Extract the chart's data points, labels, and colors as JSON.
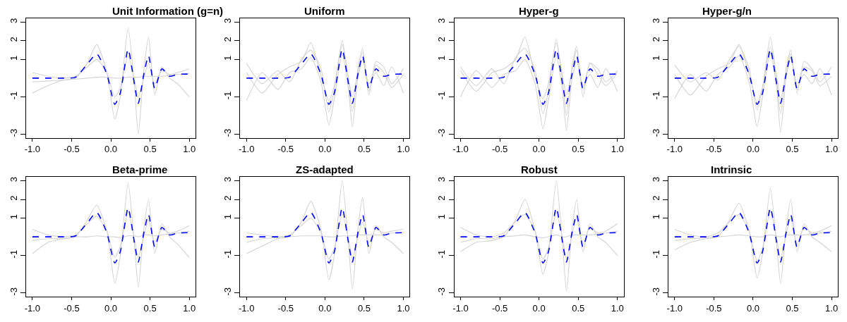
{
  "chart_data": [
    {
      "type": "line",
      "title": "Unit Information (g=n)",
      "x": [
        -1,
        -0.8,
        -0.6,
        -0.45,
        -0.3,
        -0.18,
        -0.05,
        0.05,
        0.12,
        0.22,
        0.3,
        0.35,
        0.42,
        0.48,
        0.56,
        0.65,
        0.75,
        0.85,
        1.0
      ],
      "xlim": [
        -1.08,
        1.08
      ],
      "ylim": [
        -3.2,
        3.2
      ],
      "xticks": [
        {
          "value": -1,
          "label": "-1.0"
        },
        {
          "value": -0.5,
          "label": "-0.5"
        },
        {
          "value": 0,
          "label": "0.0"
        },
        {
          "value": 0.5,
          "label": "0.5"
        },
        {
          "value": 1,
          "label": "1.0"
        }
      ],
      "yticks": [
        -3,
        -1,
        1,
        2,
        3
      ],
      "series": [
        {
          "color": "#d3d3d3",
          "line_style": "solid",
          "values": [
            -0.2,
            -0.15,
            -0.1,
            -0.05,
            0,
            0.05,
            0.05,
            0,
            0,
            0.05,
            0.05,
            0.05,
            0.1,
            0.1,
            0.1,
            0.1,
            0.15,
            0.2,
            0.25
          ]
        },
        {
          "color": "#d3d3d3",
          "line_style": "solid",
          "values": [
            0.3,
            0.1,
            0,
            0.1,
            0.6,
            1.0,
            0.3,
            -1.0,
            -0.5,
            1.2,
            -0.1,
            -1.0,
            0,
            0.8,
            -0.3,
            0.4,
            0.2,
            0.3,
            0.5
          ]
        },
        {
          "color": "#d3d3d3",
          "line_style": "solid",
          "values": [
            -0.8,
            -0.4,
            -0.1,
            0,
            0.8,
            1.8,
            0.3,
            -2.2,
            -1.0,
            2.7,
            -0.4,
            -3.0,
            0.4,
            2.2,
            -0.9,
            0.6,
            0,
            -0.3,
            -1.0
          ]
        },
        {
          "color": "#0000ff",
          "line_style": "dashed",
          "values": [
            0,
            0,
            0,
            0.05,
            0.75,
            1.3,
            0.2,
            -1.4,
            -0.8,
            1.55,
            -0.3,
            -1.35,
            0.2,
            1.2,
            -0.55,
            0.5,
            0.1,
            0.2,
            0.22
          ]
        }
      ]
    },
    {
      "type": "line",
      "title": "Uniform",
      "x": [
        -1,
        -0.8,
        -0.6,
        -0.45,
        -0.3,
        -0.18,
        -0.05,
        0.05,
        0.12,
        0.22,
        0.3,
        0.35,
        0.42,
        0.48,
        0.56,
        0.65,
        0.75,
        0.85,
        1.0
      ],
      "xlim": [
        -1.08,
        1.08
      ],
      "ylim": [
        -3.2,
        3.2
      ],
      "xticks": [
        {
          "value": -1,
          "label": "-1.0"
        },
        {
          "value": -0.5,
          "label": "-0.5"
        },
        {
          "value": 0,
          "label": "0.0"
        },
        {
          "value": 0.5,
          "label": "0.5"
        },
        {
          "value": 1,
          "label": "1.0"
        }
      ],
      "yticks": [
        -3,
        -1,
        1,
        2,
        3
      ],
      "series": [
        {
          "color": "#d3d3d3",
          "line_style": "solid",
          "values": [
            0.8,
            -0.3,
            0.4,
            -0.2,
            1.0,
            1.5,
            0.5,
            -1.8,
            -0.6,
            2.0,
            -0.1,
            -1.8,
            0.5,
            1.6,
            -0.9,
            0.9,
            0.6,
            -0.3,
            0.5
          ]
        },
        {
          "color": "#d3d3d3",
          "line_style": "solid",
          "values": [
            -1.2,
            0.3,
            -0.6,
            0.3,
            0.5,
            1.1,
            -0.2,
            -2.5,
            -1.1,
            1.3,
            -0.6,
            -2.6,
            0,
            1.0,
            -0.3,
            0.3,
            -0.4,
            0.6,
            -0.8
          ]
        },
        {
          "color": "#d3d3d3",
          "line_style": "solid",
          "values": [
            0.3,
            -0.8,
            0.2,
            0.6,
            0.9,
            1.9,
            0.1,
            -1.2,
            -0.4,
            1.8,
            0,
            -1.0,
            0.3,
            1.4,
            -0.7,
            0.7,
            0.3,
            -0.5,
            0.2
          ]
        },
        {
          "color": "#0000ff",
          "line_style": "dashed",
          "values": [
            0,
            0,
            0,
            0.05,
            0.75,
            1.3,
            0.2,
            -1.4,
            -0.8,
            1.55,
            -0.3,
            -1.35,
            0.2,
            1.2,
            -0.55,
            0.5,
            0.1,
            0.2,
            0.22
          ]
        }
      ]
    },
    {
      "type": "line",
      "title": "Hyper-g",
      "x": [
        -1,
        -0.8,
        -0.6,
        -0.45,
        -0.3,
        -0.18,
        -0.05,
        0.05,
        0.12,
        0.22,
        0.3,
        0.35,
        0.42,
        0.48,
        0.56,
        0.65,
        0.75,
        0.85,
        1.0
      ],
      "xlim": [
        -1.08,
        1.08
      ],
      "ylim": [
        -3.2,
        3.2
      ],
      "xticks": [
        {
          "value": -1,
          "label": "-1.0"
        },
        {
          "value": -0.5,
          "label": "-0.5"
        },
        {
          "value": 0,
          "label": "0.0"
        },
        {
          "value": 0.5,
          "label": "0.5"
        },
        {
          "value": 1,
          "label": "1.0"
        }
      ],
      "yticks": [
        -3,
        -1,
        1,
        2,
        3
      ],
      "series": [
        {
          "color": "#d3d3d3",
          "line_style": "solid",
          "values": [
            0.6,
            -0.4,
            0.5,
            -0.3,
            1.1,
            1.6,
            0.4,
            -1.9,
            -0.7,
            2.1,
            -0.2,
            -2.0,
            0.6,
            1.7,
            -1.0,
            0.8,
            0.5,
            -0.2,
            0.4
          ]
        },
        {
          "color": "#d3d3d3",
          "line_style": "solid",
          "values": [
            -1.0,
            0.4,
            -0.5,
            0.2,
            0.4,
            1.0,
            -0.3,
            -2.7,
            -1.2,
            1.2,
            -0.7,
            -2.8,
            -0.1,
            0.9,
            -0.4,
            0.2,
            -0.5,
            0.5,
            -0.7
          ]
        },
        {
          "color": "#d3d3d3",
          "line_style": "solid",
          "values": [
            0.4,
            -0.7,
            0.3,
            0.5,
            1.0,
            2.2,
            0.1,
            -1.1,
            -0.3,
            1.9,
            0.1,
            -0.9,
            0.4,
            1.5,
            -0.6,
            0.8,
            0.2,
            -0.4,
            0.3
          ]
        },
        {
          "color": "#0000ff",
          "line_style": "dashed",
          "values": [
            0,
            0,
            0,
            0.05,
            0.75,
            1.3,
            0.2,
            -1.4,
            -0.8,
            1.55,
            -0.3,
            -1.35,
            0.2,
            1.2,
            -0.55,
            0.5,
            0.1,
            0.2,
            0.22
          ]
        }
      ]
    },
    {
      "type": "line",
      "title": "Hyper-g/n",
      "x": [
        -1,
        -0.8,
        -0.6,
        -0.45,
        -0.3,
        -0.18,
        -0.05,
        0.05,
        0.12,
        0.22,
        0.3,
        0.35,
        0.42,
        0.48,
        0.56,
        0.65,
        0.75,
        0.85,
        1.0
      ],
      "xlim": [
        -1.08,
        1.08
      ],
      "ylim": [
        -3.2,
        3.2
      ],
      "xticks": [
        {
          "value": -1,
          "label": "-1.0"
        },
        {
          "value": -0.5,
          "label": "-0.5"
        },
        {
          "value": 0,
          "label": "0.0"
        },
        {
          "value": 0.5,
          "label": "0.5"
        },
        {
          "value": 1,
          "label": "1.0"
        }
      ],
      "yticks": [
        -3,
        -1,
        1,
        2,
        3
      ],
      "series": [
        {
          "color": "#d3d3d3",
          "line_style": "solid",
          "values": [
            0.7,
            -0.2,
            0.3,
            -0.1,
            1.0,
            1.7,
            0.5,
            -1.7,
            -0.5,
            2.2,
            -0.1,
            -1.9,
            0.5,
            1.5,
            -0.8,
            0.9,
            0.5,
            -0.2,
            0.6
          ]
        },
        {
          "color": "#d3d3d3",
          "line_style": "solid",
          "values": [
            -1.1,
            0.2,
            -0.7,
            0.2,
            0.6,
            1.2,
            -0.2,
            -2.6,
            -1.0,
            1.4,
            -0.5,
            -2.9,
            0,
            1.1,
            -0.3,
            0.2,
            -0.3,
            0.5,
            -0.9
          ]
        },
        {
          "color": "#d3d3d3",
          "line_style": "solid",
          "values": [
            0.2,
            -0.9,
            0.1,
            0.5,
            0.8,
            1.8,
            0.2,
            -1.3,
            -0.5,
            1.7,
            0.1,
            -1.1,
            0.2,
            1.3,
            -0.6,
            0.6,
            0.4,
            -0.4,
            0.1
          ]
        },
        {
          "color": "#0000ff",
          "line_style": "dashed",
          "values": [
            0,
            0,
            0,
            0.05,
            0.75,
            1.3,
            0.2,
            -1.4,
            -0.8,
            1.55,
            -0.3,
            -1.35,
            0.2,
            1.2,
            -0.55,
            0.5,
            0.1,
            0.2,
            0.22
          ]
        }
      ]
    },
    {
      "type": "line",
      "title": "Beta-prime",
      "x": [
        -1,
        -0.8,
        -0.6,
        -0.45,
        -0.3,
        -0.18,
        -0.05,
        0.05,
        0.12,
        0.22,
        0.3,
        0.35,
        0.42,
        0.48,
        0.56,
        0.65,
        0.75,
        0.85,
        1.0
      ],
      "xlim": [
        -1.08,
        1.08
      ],
      "ylim": [
        -3.2,
        3.2
      ],
      "xticks": [
        {
          "value": -1,
          "label": "-1.0"
        },
        {
          "value": -0.5,
          "label": "-0.5"
        },
        {
          "value": 0,
          "label": "0.0"
        },
        {
          "value": 0.5,
          "label": "0.5"
        },
        {
          "value": 1,
          "label": "1.0"
        }
      ],
      "yticks": [
        -3,
        -1,
        1,
        2,
        3
      ],
      "series": [
        {
          "color": "#d3d3d3",
          "line_style": "solid",
          "values": [
            -0.2,
            -0.1,
            -0.1,
            0,
            0,
            0.05,
            0,
            0,
            -0.05,
            0.05,
            0.05,
            0,
            0.1,
            0.1,
            0.05,
            0.1,
            0.15,
            0.2,
            0.3
          ]
        },
        {
          "color": "#d3d3d3",
          "line_style": "solid",
          "values": [
            0.4,
            0.1,
            0,
            0.1,
            0.7,
            1.1,
            0.3,
            -1.1,
            -0.5,
            1.3,
            -0.1,
            -1.1,
            0,
            0.9,
            -0.3,
            0.4,
            0.2,
            0.3,
            0.6
          ]
        },
        {
          "color": "#d3d3d3",
          "line_style": "solid",
          "values": [
            -0.9,
            -0.3,
            -0.1,
            0,
            0.9,
            1.7,
            0.3,
            -2.5,
            -1.0,
            2.9,
            -0.4,
            -2.7,
            0.4,
            2.0,
            -0.9,
            0.7,
            0,
            -0.4,
            -1.1
          ]
        },
        {
          "color": "#0000ff",
          "line_style": "dashed",
          "values": [
            0,
            0,
            0,
            0.05,
            0.75,
            1.3,
            0.2,
            -1.4,
            -0.8,
            1.55,
            -0.3,
            -1.35,
            0.2,
            1.2,
            -0.55,
            0.5,
            0.1,
            0.2,
            0.22
          ]
        }
      ]
    },
    {
      "type": "line",
      "title": "ZS-adapted",
      "x": [
        -1,
        -0.8,
        -0.6,
        -0.45,
        -0.3,
        -0.18,
        -0.05,
        0.05,
        0.12,
        0.22,
        0.3,
        0.35,
        0.42,
        0.48,
        0.56,
        0.65,
        0.75,
        0.85,
        1.0
      ],
      "xlim": [
        -1.08,
        1.08
      ],
      "ylim": [
        -3.2,
        3.2
      ],
      "xticks": [
        {
          "value": -1,
          "label": "-1.0"
        },
        {
          "value": -0.5,
          "label": "-0.5"
        },
        {
          "value": 0,
          "label": "0.0"
        },
        {
          "value": 0.5,
          "label": "0.5"
        },
        {
          "value": 1,
          "label": "1.0"
        }
      ],
      "yticks": [
        -3,
        -1,
        1,
        2,
        3
      ],
      "series": [
        {
          "color": "#d3d3d3",
          "line_style": "solid",
          "values": [
            -0.3,
            -0.1,
            -0.05,
            0,
            0.05,
            0.05,
            0.05,
            0,
            0,
            0.05,
            0.05,
            0.05,
            0.1,
            0.1,
            0.1,
            0.1,
            0.1,
            0.2,
            0.2
          ]
        },
        {
          "color": "#d3d3d3",
          "line_style": "solid",
          "values": [
            0.2,
            0.1,
            0,
            0.1,
            0.6,
            1.0,
            0.2,
            -1.2,
            -0.6,
            1.2,
            -0.1,
            -1.2,
            0,
            0.8,
            -0.3,
            0.4,
            0.2,
            0.3,
            0.4
          ]
        },
        {
          "color": "#d3d3d3",
          "line_style": "solid",
          "values": [
            -0.9,
            -0.5,
            -0.1,
            0,
            0.8,
            1.9,
            0.4,
            -2.3,
            -1.0,
            3.0,
            -0.4,
            -2.8,
            0.4,
            2.1,
            -0.9,
            0.6,
            0,
            -0.3,
            -0.9
          ]
        },
        {
          "color": "#0000ff",
          "line_style": "dashed",
          "values": [
            0,
            0,
            0,
            0.05,
            0.75,
            1.3,
            0.2,
            -1.4,
            -0.8,
            1.55,
            -0.3,
            -1.35,
            0.2,
            1.2,
            -0.55,
            0.5,
            0.1,
            0.2,
            0.22
          ]
        }
      ]
    },
    {
      "type": "line",
      "title": "Robust",
      "x": [
        -1,
        -0.8,
        -0.6,
        -0.45,
        -0.3,
        -0.18,
        -0.05,
        0.05,
        0.12,
        0.22,
        0.3,
        0.35,
        0.42,
        0.48,
        0.56,
        0.65,
        0.75,
        0.85,
        1.0
      ],
      "xlim": [
        -1.08,
        1.08
      ],
      "ylim": [
        -3.2,
        3.2
      ],
      "xticks": [
        {
          "value": -1,
          "label": "-1.0"
        },
        {
          "value": -0.5,
          "label": "-0.5"
        },
        {
          "value": 0,
          "label": "0.0"
        },
        {
          "value": 0.5,
          "label": "0.5"
        },
        {
          "value": 1,
          "label": "1.0"
        }
      ],
      "yticks": [
        -3,
        -1,
        1,
        2,
        3
      ],
      "series": [
        {
          "color": "#d3d3d3",
          "line_style": "solid",
          "values": [
            -0.3,
            -0.1,
            -0.1,
            0,
            0.05,
            0.1,
            0,
            -0.05,
            0,
            0.1,
            0,
            0,
            0.1,
            0.1,
            0.1,
            0.1,
            0.15,
            0.2,
            0.3
          ]
        },
        {
          "color": "#d3d3d3",
          "line_style": "solid",
          "values": [
            0.5,
            0.1,
            0,
            0.2,
            0.8,
            1.2,
            0.3,
            -1.2,
            -0.6,
            1.3,
            -0.1,
            -1.2,
            0.1,
            1.0,
            -0.4,
            0.5,
            0.2,
            0.3,
            0.7
          ]
        },
        {
          "color": "#d3d3d3",
          "line_style": "solid",
          "values": [
            -0.8,
            -0.3,
            -0.2,
            0,
            0.9,
            2.0,
            0.3,
            -2.0,
            -0.9,
            3.0,
            -0.4,
            -2.9,
            0.4,
            2.0,
            -0.8,
            0.7,
            0,
            -0.3,
            -1.0
          ]
        },
        {
          "color": "#0000ff",
          "line_style": "dashed",
          "values": [
            0,
            0,
            0,
            0.05,
            0.75,
            1.3,
            0.2,
            -1.4,
            -0.8,
            1.55,
            -0.3,
            -1.35,
            0.2,
            1.2,
            -0.55,
            0.5,
            0.1,
            0.2,
            0.22
          ]
        }
      ]
    },
    {
      "type": "line",
      "title": "Intrinsic",
      "x": [
        -1,
        -0.8,
        -0.6,
        -0.45,
        -0.3,
        -0.18,
        -0.05,
        0.05,
        0.12,
        0.22,
        0.3,
        0.35,
        0.42,
        0.48,
        0.56,
        0.65,
        0.75,
        0.85,
        1.0
      ],
      "xlim": [
        -1.08,
        1.08
      ],
      "ylim": [
        -3.2,
        3.2
      ],
      "xticks": [
        {
          "value": -1,
          "label": "-1.0"
        },
        {
          "value": -0.5,
          "label": "-0.5"
        },
        {
          "value": 0,
          "label": "0.0"
        },
        {
          "value": 0.5,
          "label": "0.5"
        },
        {
          "value": 1,
          "label": "1.0"
        }
      ],
      "yticks": [
        -3,
        -1,
        1,
        2,
        3
      ],
      "series": [
        {
          "color": "#d3d3d3",
          "line_style": "solid",
          "values": [
            -0.2,
            -0.1,
            -0.05,
            0,
            0.05,
            0.1,
            0.05,
            0,
            0,
            0.1,
            0.05,
            0,
            0.1,
            0.1,
            0.1,
            0.1,
            0.15,
            0.2,
            0.3
          ]
        },
        {
          "color": "#d3d3d3",
          "line_style": "solid",
          "values": [
            0.4,
            0.1,
            0,
            0.2,
            0.8,
            1.2,
            0.3,
            -1.3,
            -0.6,
            1.4,
            -0.1,
            -1.2,
            0.1,
            1.0,
            -0.4,
            0.5,
            0.2,
            0.3,
            0.6
          ]
        },
        {
          "color": "#d3d3d3",
          "line_style": "solid",
          "values": [
            -0.7,
            -0.3,
            -0.1,
            0,
            0.9,
            1.8,
            0.3,
            -2.2,
            -0.9,
            2.6,
            -0.4,
            -2.5,
            0.4,
            2.0,
            -0.8,
            0.7,
            0,
            -0.3,
            -0.8
          ]
        },
        {
          "color": "#0000ff",
          "line_style": "dashed",
          "values": [
            0,
            0,
            0,
            0.05,
            0.75,
            1.3,
            0.2,
            -1.4,
            -0.8,
            1.55,
            -0.3,
            -1.35,
            0.2,
            1.2,
            -0.55,
            0.5,
            0.1,
            0.2,
            0.22
          ]
        }
      ]
    }
  ]
}
